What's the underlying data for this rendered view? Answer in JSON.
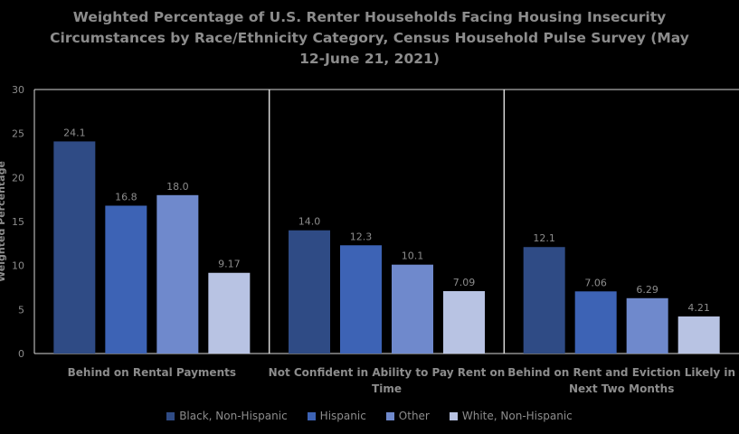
{
  "chart_data": {
    "type": "bar",
    "title_lines": [
      "Weighted Percentage of U.S. Renter Households Facing Housing Insecurity",
      "Circumstances by Race/Ethnicity Category, Census Household Pulse Survey (May",
      "12-June 21, 2021)"
    ],
    "ylabel": "Weighted Percentage",
    "ylim": [
      0,
      30
    ],
    "yticks": [
      "0",
      "5",
      "10",
      "15",
      "20",
      "25",
      "30"
    ],
    "grid": true,
    "legend_position": "bottom",
    "categories": [
      {
        "lines": [
          "Behind on Rental Payments"
        ]
      },
      {
        "lines": [
          "Not Confident in Ability to Pay Rent on",
          "Time"
        ]
      },
      {
        "lines": [
          "Behind on Rent and Eviction Likely in",
          "Next Two Months"
        ]
      }
    ],
    "series": [
      {
        "name": "Black, Non-Hispanic",
        "color": "#2f4b85",
        "values": [
          24.1,
          14.0,
          12.1
        ],
        "labels": [
          "24.1",
          "14.0",
          "12.1"
        ]
      },
      {
        "name": "Hispanic",
        "color": "#3d63b5",
        "values": [
          16.8,
          12.3,
          7.06
        ],
        "labels": [
          "16.8",
          "12.3",
          "7.06"
        ]
      },
      {
        "name": "Other",
        "color": "#6f89cc",
        "values": [
          18.0,
          10.1,
          6.29
        ],
        "labels": [
          "18.0",
          "10.1",
          "6.29"
        ]
      },
      {
        "name": "White, Non-Hispanic",
        "color": "#b8c3e3",
        "values": [
          9.17,
          7.09,
          4.21
        ],
        "labels": [
          "9.17",
          "7.09",
          "4.21"
        ]
      }
    ]
  }
}
